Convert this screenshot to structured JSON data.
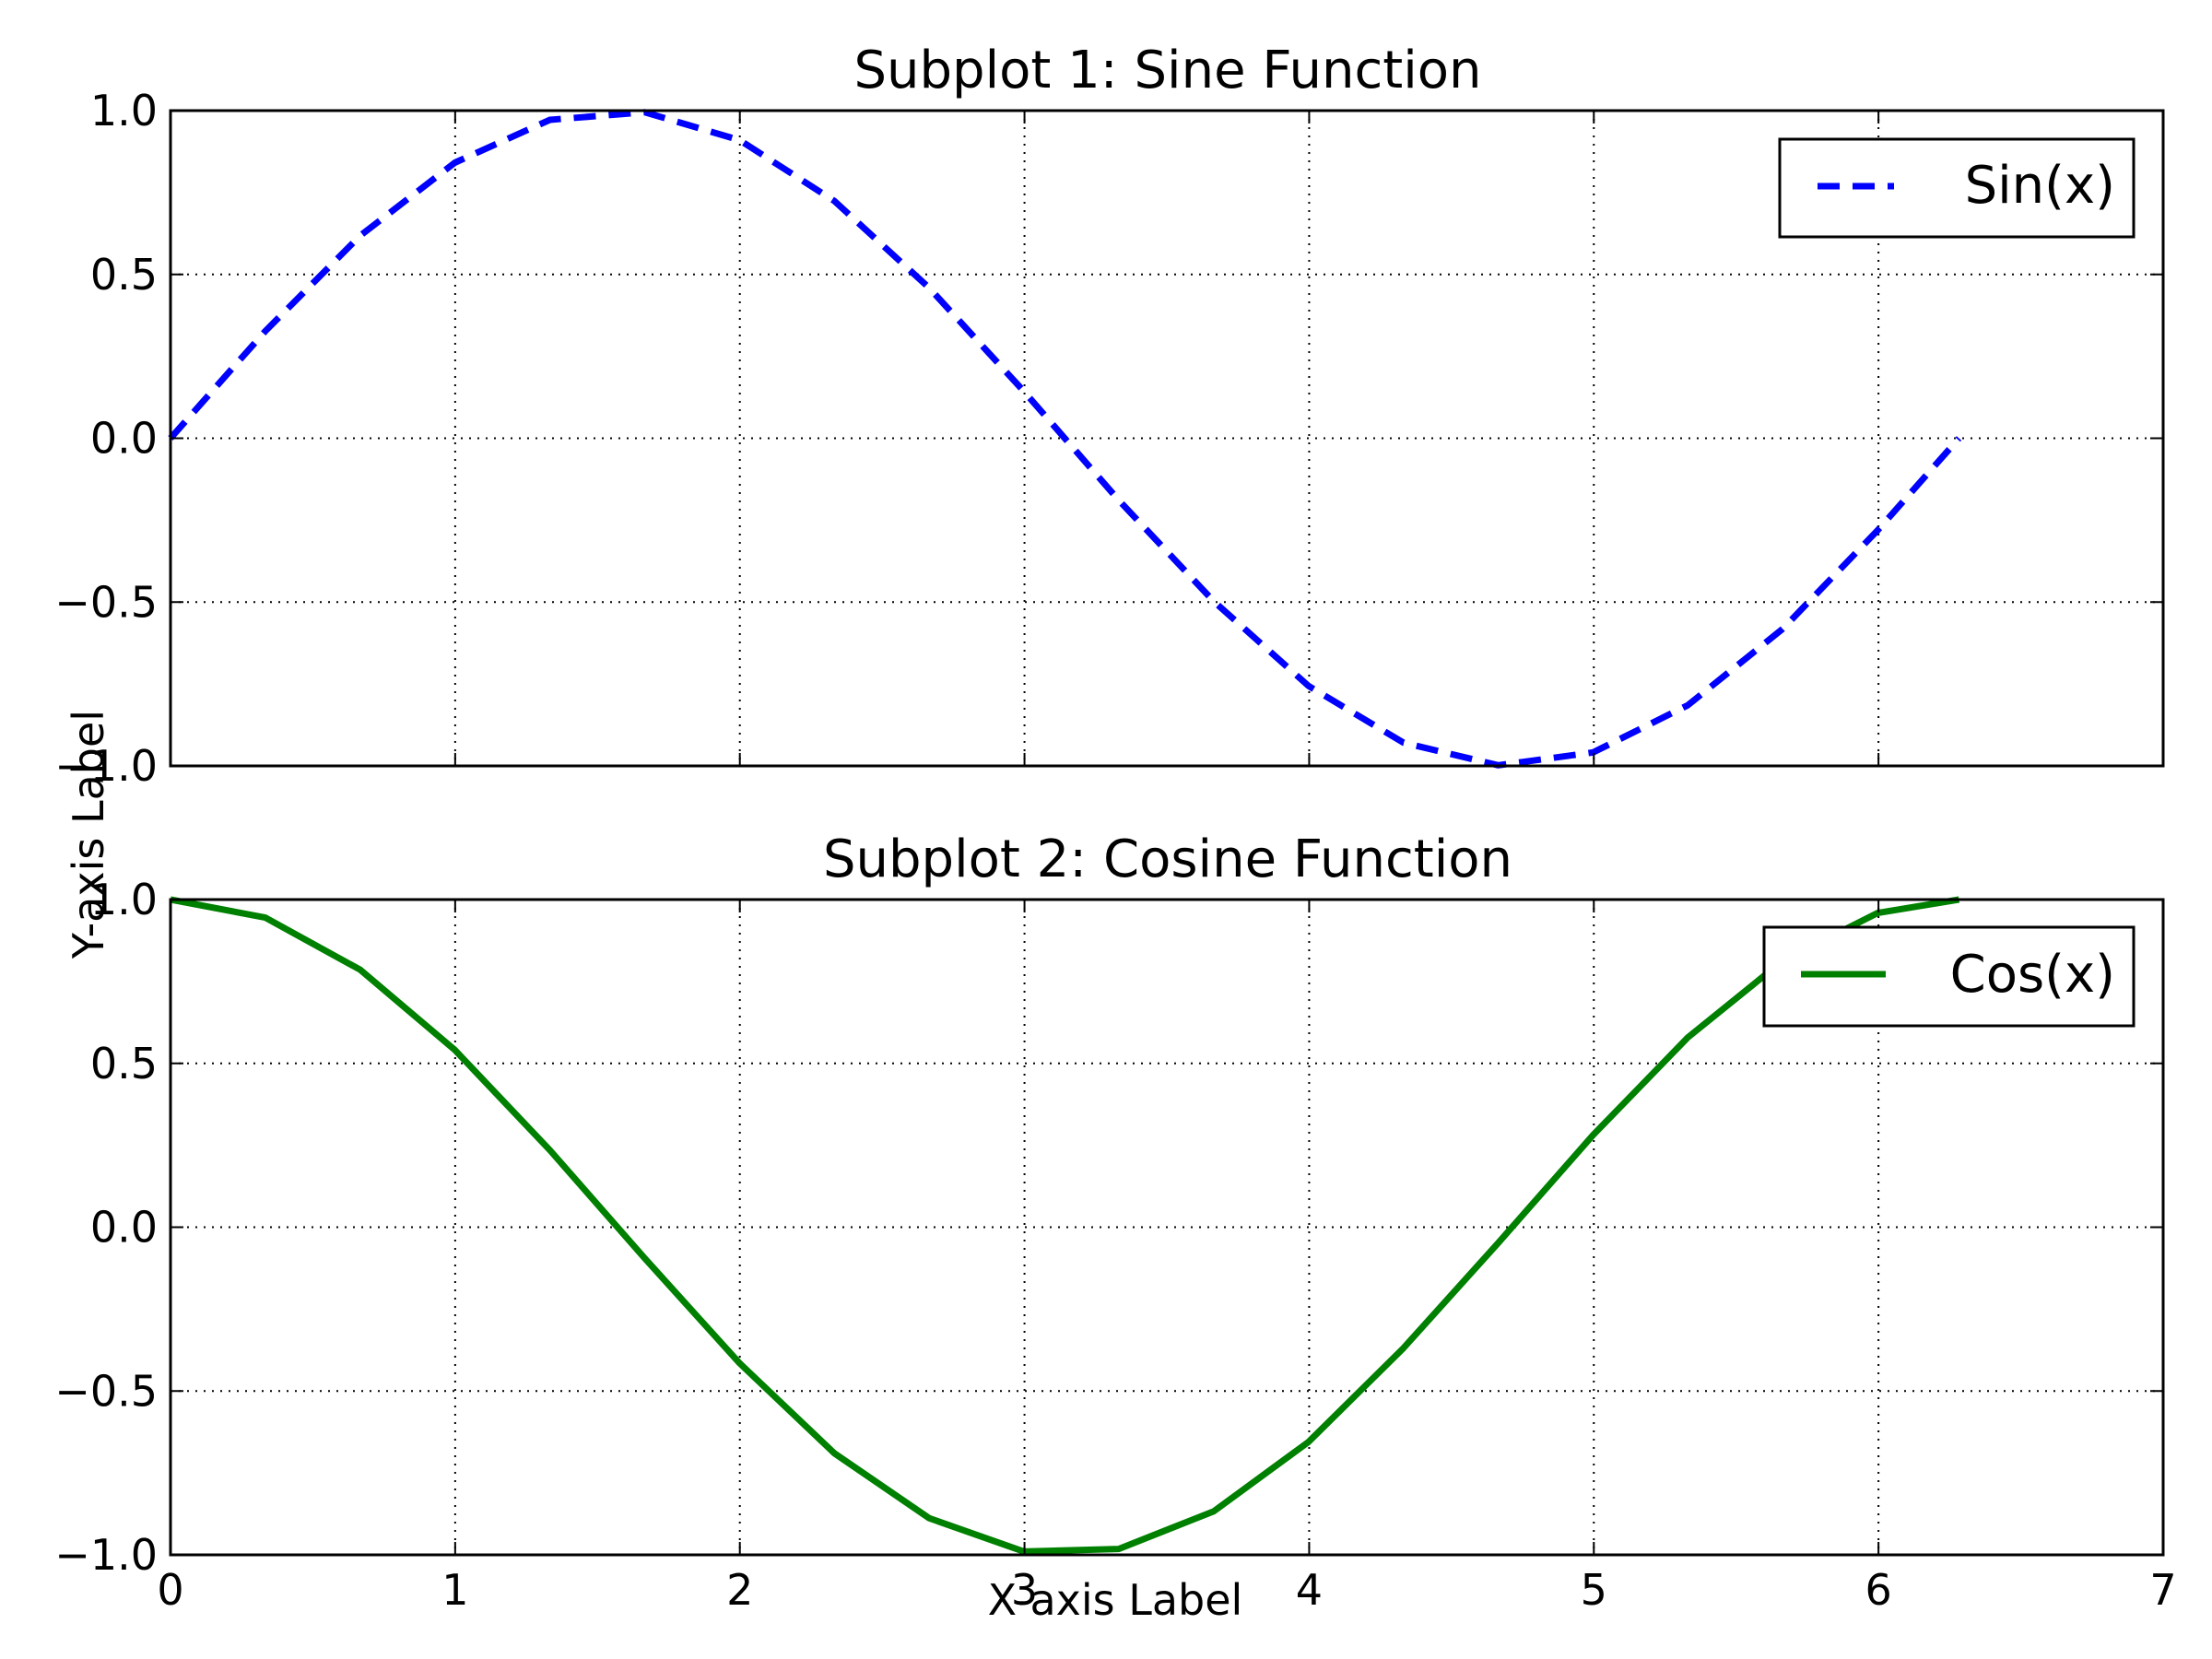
{
  "figure": {
    "xlabel": "X-axis Label",
    "ylabel": "Y-axis Label"
  },
  "chart_data": [
    {
      "type": "line",
      "title": "Subplot 1: Sine Function",
      "xlim": [
        0,
        7
      ],
      "ylim": [
        -1.0,
        1.0
      ],
      "x_ticks": [
        "0",
        "1",
        "2",
        "3",
        "4",
        "5",
        "6",
        "7"
      ],
      "y_ticks": [
        "−1.0",
        "−0.5",
        "0.0",
        "0.5",
        "1.0"
      ],
      "x_tick_labels_visible": false,
      "grid": true,
      "legend_position": "upper right",
      "series": [
        {
          "name": "Sin(x)",
          "color": "#0000ff",
          "style": "dashed",
          "x": [
            0.0,
            0.333,
            0.666,
            0.999,
            1.333,
            1.666,
            1.999,
            2.332,
            2.665,
            2.998,
            3.331,
            3.665,
            3.998,
            4.331,
            4.664,
            4.997,
            5.33,
            5.663,
            5.997,
            6.283
          ],
          "y": [
            0.0,
            0.327,
            0.618,
            0.841,
            0.972,
            0.995,
            0.91,
            0.724,
            0.459,
            0.143,
            -0.189,
            -0.498,
            -0.756,
            -0.929,
            -0.998,
            -0.959,
            -0.815,
            -0.582,
            -0.281,
            0.0
          ]
        }
      ]
    },
    {
      "type": "line",
      "title": "Subplot 2: Cosine Function",
      "xlim": [
        0,
        7
      ],
      "ylim": [
        -1.0,
        1.0
      ],
      "x_ticks": [
        "0",
        "1",
        "2",
        "3",
        "4",
        "5",
        "6",
        "7"
      ],
      "y_ticks": [
        "−1.0",
        "−0.5",
        "0.0",
        "0.5",
        "1.0"
      ],
      "x_tick_labels_visible": true,
      "grid": true,
      "legend_position": "upper right",
      "series": [
        {
          "name": "Cos(x)",
          "color": "#008000",
          "style": "solid",
          "x": [
            0.0,
            0.333,
            0.666,
            0.999,
            1.333,
            1.666,
            1.999,
            2.332,
            2.665,
            2.998,
            3.331,
            3.665,
            3.998,
            4.331,
            4.664,
            4.997,
            5.33,
            5.663,
            5.997,
            6.283
          ],
          "y": [
            1.0,
            0.945,
            0.786,
            0.541,
            0.235,
            -0.095,
            -0.415,
            -0.69,
            -0.888,
            -0.99,
            -0.982,
            -0.867,
            -0.655,
            -0.369,
            -0.048,
            0.281,
            0.579,
            0.813,
            0.959,
            1.0
          ]
        }
      ]
    }
  ]
}
